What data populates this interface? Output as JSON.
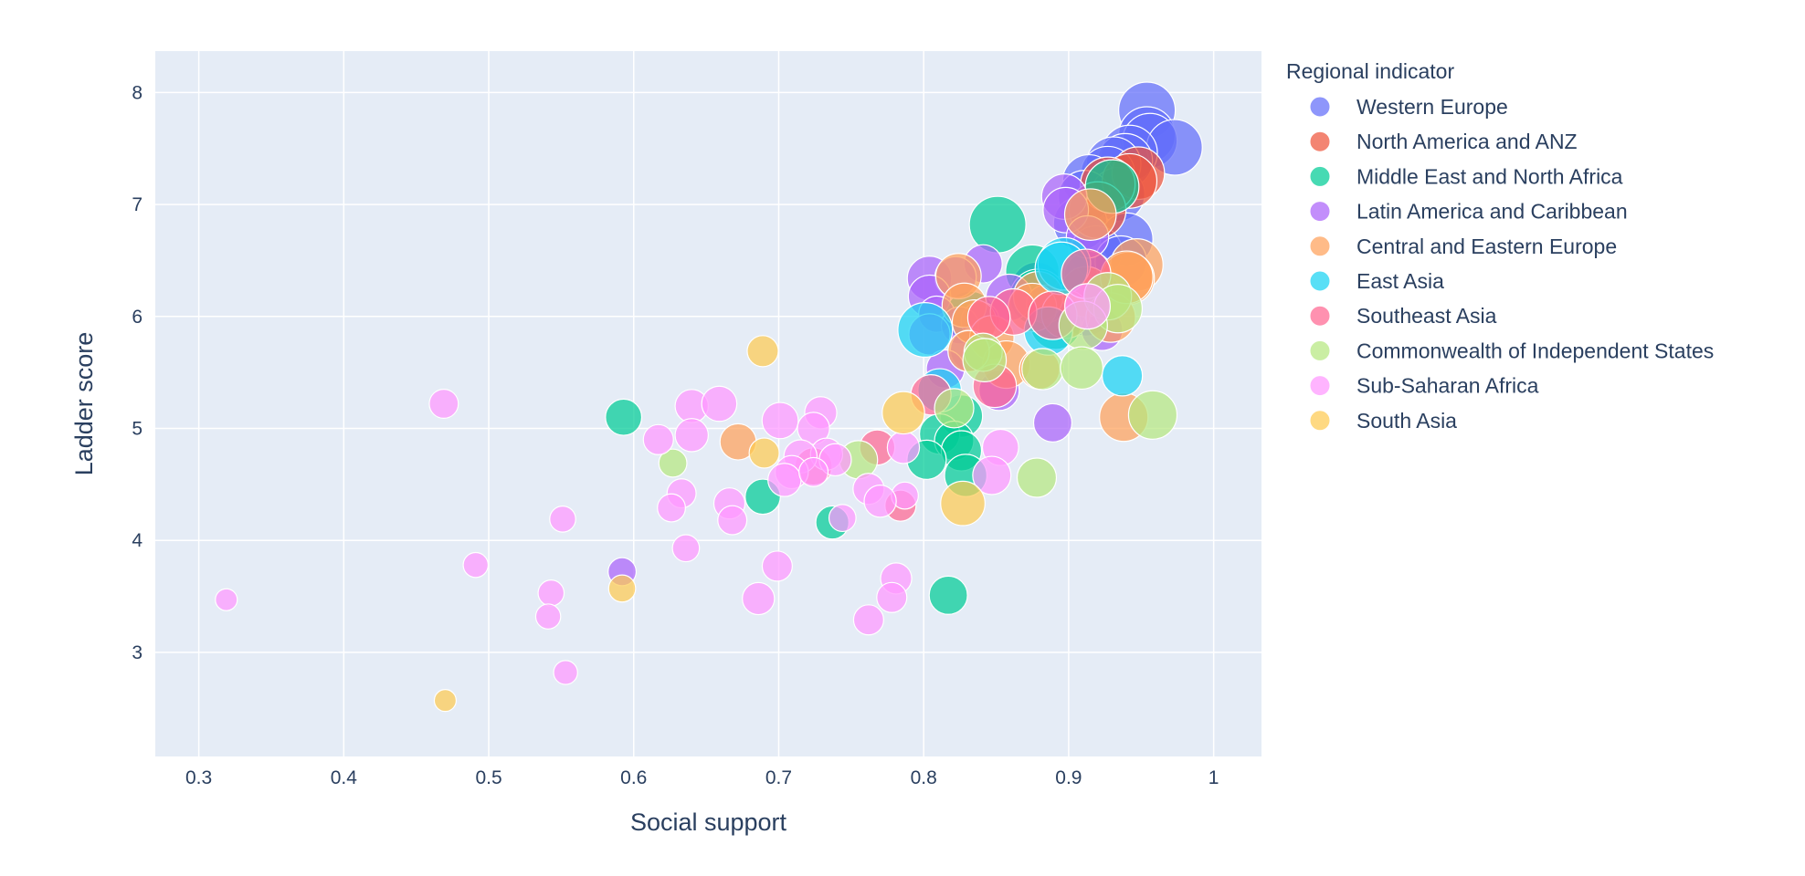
{
  "chart_data": {
    "type": "scatter",
    "title": "",
    "xlabel": "Social support",
    "ylabel": "Ladder score",
    "xlim": [
      0.27,
      1.033
    ],
    "ylim": [
      2.07,
      8.37
    ],
    "xticks": [
      0.3,
      0.4,
      0.5,
      0.6,
      0.7,
      0.8,
      0.9,
      1
    ],
    "xtick_labels": [
      "0.3",
      "0.4",
      "0.5",
      "0.6",
      "0.7",
      "0.8",
      "0.9",
      "1"
    ],
    "yticks": [
      3,
      4,
      5,
      6,
      7,
      8
    ],
    "ytick_labels": [
      "3",
      "4",
      "5",
      "6",
      "7",
      "8"
    ],
    "grid": true,
    "legend": {
      "title": "Regional indicator",
      "position": "right"
    },
    "size_note": "bubble size proportional to an unlabeled size variable",
    "series": [
      {
        "name": "Western Europe",
        "color": "#636efa",
        "points": [
          [
            0.954,
            7.84,
            11.0
          ],
          [
            0.954,
            7.62,
            11.0
          ],
          [
            0.956,
            7.57,
            10.8
          ],
          [
            0.973,
            7.51,
            10.9
          ],
          [
            0.942,
            7.46,
            10.9
          ],
          [
            0.939,
            7.39,
            10.8
          ],
          [
            0.931,
            7.36,
            10.8
          ],
          [
            0.927,
            7.28,
            10.7
          ],
          [
            0.914,
            7.21,
            10.6
          ],
          [
            0.934,
            7.09,
            10.7
          ],
          [
            0.911,
            7.07,
            10.6
          ],
          [
            0.908,
            6.83,
            10.7
          ],
          [
            0.94,
            6.69,
            10.6
          ],
          [
            0.919,
            6.58,
            10.5
          ],
          [
            0.936,
            6.49,
            10.5
          ],
          [
            0.914,
            6.36,
            10.3
          ],
          [
            0.878,
            6.26,
            10.4
          ],
          [
            0.88,
            6.18,
            10.4
          ],
          [
            0.912,
            6.05,
            10.4
          ]
        ]
      },
      {
        "name": "North America and ANZ",
        "color": "#ef553b",
        "points": [
          [
            0.948,
            7.28,
            10.6
          ],
          [
            0.942,
            7.21,
            10.8
          ],
          [
            0.927,
            7.18,
            10.8
          ],
          [
            0.92,
            6.95,
            11.0
          ]
        ]
      },
      {
        "name": "Middle East and North Africa",
        "color": "#00cc96",
        "points": [
          [
            0.93,
            7.16,
            10.7
          ],
          [
            0.851,
            6.82,
            11.0
          ],
          [
            0.875,
            6.4,
            10.7
          ],
          [
            0.879,
            6.17,
            11.0
          ],
          [
            0.832,
            6.0,
            10.4
          ],
          [
            0.891,
            5.93,
            10.4
          ],
          [
            0.826,
            5.11,
            9.6
          ],
          [
            0.593,
            5.1,
            9.0
          ],
          [
            0.811,
            4.95,
            9.4
          ],
          [
            0.821,
            4.89,
            9.3
          ],
          [
            0.826,
            4.8,
            9.4
          ],
          [
            0.802,
            4.72,
            9.3
          ],
          [
            0.829,
            4.58,
            9.6
          ],
          [
            0.689,
            4.39,
            8.9
          ],
          [
            0.737,
            4.16,
            8.7
          ],
          [
            0.817,
            3.51,
            9.2
          ]
        ]
      },
      {
        "name": "Latin America and Caribbean",
        "color": "#ab63fa",
        "points": [
          [
            0.897,
            7.07,
            9.9
          ],
          [
            0.898,
            6.95,
            9.9
          ],
          [
            0.913,
            6.71,
            9.6
          ],
          [
            0.841,
            6.47,
            9.2
          ],
          [
            0.804,
            6.34,
            9.8
          ],
          [
            0.822,
            6.35,
            9.5
          ],
          [
            0.804,
            6.18,
            9.6
          ],
          [
            0.859,
            6.17,
            10.0
          ],
          [
            0.884,
            6.11,
            9.2
          ],
          [
            0.809,
            6.02,
            9.0
          ],
          [
            0.839,
            5.96,
            9.2
          ],
          [
            0.825,
            5.92,
            9.1
          ],
          [
            0.804,
            5.84,
            9.5
          ],
          [
            0.923,
            5.88,
            9.5
          ],
          [
            0.833,
            5.7,
            9.6
          ],
          [
            0.815,
            5.53,
            9.2
          ],
          [
            0.852,
            5.34,
            9.4
          ],
          [
            0.889,
            5.05,
            9.2
          ],
          [
            0.592,
            3.72,
            8.2
          ]
        ]
      },
      {
        "name": "Central and Eastern Europe",
        "color": "#ffa15a",
        "points": [
          [
            0.915,
            6.91,
            10.5
          ],
          [
            0.947,
            6.46,
            10.6
          ],
          [
            0.941,
            6.34,
            10.6
          ],
          [
            0.912,
            6.22,
            10.4
          ],
          [
            0.879,
            6.18,
            10.3
          ],
          [
            0.875,
            6.08,
            10.2
          ],
          [
            0.898,
            6.02,
            10.2
          ],
          [
            0.929,
            5.99,
            10.3
          ],
          [
            0.94,
            6.35,
            10.6
          ],
          [
            0.824,
            6.36,
            9.9
          ],
          [
            0.828,
            6.1,
            9.8
          ],
          [
            0.835,
            5.95,
            9.8
          ],
          [
            0.847,
            5.81,
            9.8
          ],
          [
            0.857,
            5.57,
            10.1
          ],
          [
            0.88,
            5.53,
            9.4
          ],
          [
            0.938,
            5.1,
            10.2
          ],
          [
            0.672,
            4.88,
            9.0
          ],
          [
            0.831,
            5.69,
            9.5
          ]
        ]
      },
      {
        "name": "East Asia",
        "color": "#19d3f3",
        "points": [
          [
            0.897,
            6.47,
            10.6
          ],
          [
            0.895,
            6.43,
            10.6
          ],
          [
            0.801,
            5.88,
            10.8
          ],
          [
            0.886,
            5.87,
            10.2
          ],
          [
            0.937,
            5.47,
            9.4
          ],
          [
            0.811,
            5.34,
            9.7
          ]
        ]
      },
      {
        "name": "Southeast Asia",
        "color": "#ff6692",
        "points": [
          [
            0.912,
            6.38,
            10.3
          ],
          [
            0.862,
            6.04,
            10.0
          ],
          [
            0.889,
            6.01,
            10.2
          ],
          [
            0.845,
            5.99,
            9.6
          ],
          [
            0.849,
            5.38,
            9.7
          ],
          [
            0.805,
            5.3,
            9.4
          ],
          [
            0.768,
            4.83,
            8.9
          ],
          [
            0.784,
            4.31,
            8.5
          ],
          [
            0.724,
            4.66,
            9.1
          ]
        ]
      },
      {
        "name": "Commonwealth of Independent States",
        "color": "#b6e880",
        "points": [
          [
            0.927,
            6.18,
            10.1
          ],
          [
            0.934,
            6.07,
            10.2
          ],
          [
            0.91,
            5.92,
            10.2
          ],
          [
            0.841,
            5.68,
            9.2
          ],
          [
            0.842,
            5.61,
            9.7
          ],
          [
            0.882,
            5.53,
            9.5
          ],
          [
            0.909,
            5.54,
            9.6
          ],
          [
            0.958,
            5.12,
            10.2
          ],
          [
            0.878,
            4.56,
            9.3
          ],
          [
            0.821,
            5.18,
            9.3
          ],
          [
            0.627,
            4.69,
            8.2
          ],
          [
            0.755,
            4.72,
            9.2
          ]
        ]
      },
      {
        "name": "Sub-Saharan Africa",
        "color": "#ff97ff",
        "points": [
          [
            0.913,
            6.09,
            9.9
          ],
          [
            0.469,
            5.22,
            8.3
          ],
          [
            0.64,
            5.2,
            8.7
          ],
          [
            0.659,
            5.22,
            8.9
          ],
          [
            0.701,
            5.07,
            9.0
          ],
          [
            0.729,
            5.14,
            8.6
          ],
          [
            0.617,
            4.9,
            8.4
          ],
          [
            0.64,
            4.94,
            8.7
          ],
          [
            0.724,
            5.0,
            8.6
          ],
          [
            0.733,
            4.77,
            8.6
          ],
          [
            0.715,
            4.75,
            8.7
          ],
          [
            0.739,
            4.72,
            8.6
          ],
          [
            0.709,
            4.61,
            8.7
          ],
          [
            0.704,
            4.54,
            8.7
          ],
          [
            0.724,
            4.61,
            8.3
          ],
          [
            0.762,
            4.46,
            8.5
          ],
          [
            0.787,
            4.4,
            8.1
          ],
          [
            0.77,
            4.35,
            8.6
          ],
          [
            0.666,
            4.33,
            8.5
          ],
          [
            0.633,
            4.42,
            8.3
          ],
          [
            0.626,
            4.29,
            8.2
          ],
          [
            0.668,
            4.18,
            8.3
          ],
          [
            0.744,
            4.2,
            8.1
          ],
          [
            0.786,
            4.83,
            8.6
          ],
          [
            0.853,
            4.83,
            9.0
          ],
          [
            0.847,
            4.58,
            9.2
          ],
          [
            0.551,
            4.19,
            8.0
          ],
          [
            0.636,
            3.93,
            8.1
          ],
          [
            0.491,
            3.78,
            7.9
          ],
          [
            0.699,
            3.77,
            8.4
          ],
          [
            0.781,
            3.66,
            8.5
          ],
          [
            0.543,
            3.53,
            8.0
          ],
          [
            0.686,
            3.48,
            8.6
          ],
          [
            0.778,
            3.49,
            8.4
          ],
          [
            0.541,
            3.32,
            7.9
          ],
          [
            0.762,
            3.29,
            8.4
          ],
          [
            0.319,
            3.47,
            7.6
          ],
          [
            0.553,
            2.82,
            7.8
          ]
        ]
      },
      {
        "name": "South Asia",
        "color": "#fecb52",
        "points": [
          [
            0.689,
            5.69,
            8.5
          ],
          [
            0.786,
            5.14,
            9.6
          ],
          [
            0.827,
            4.33,
            9.8
          ],
          [
            0.69,
            4.78,
            8.4
          ],
          [
            0.592,
            3.57,
            8.1
          ],
          [
            0.47,
            2.57,
            7.6
          ]
        ]
      }
    ]
  }
}
